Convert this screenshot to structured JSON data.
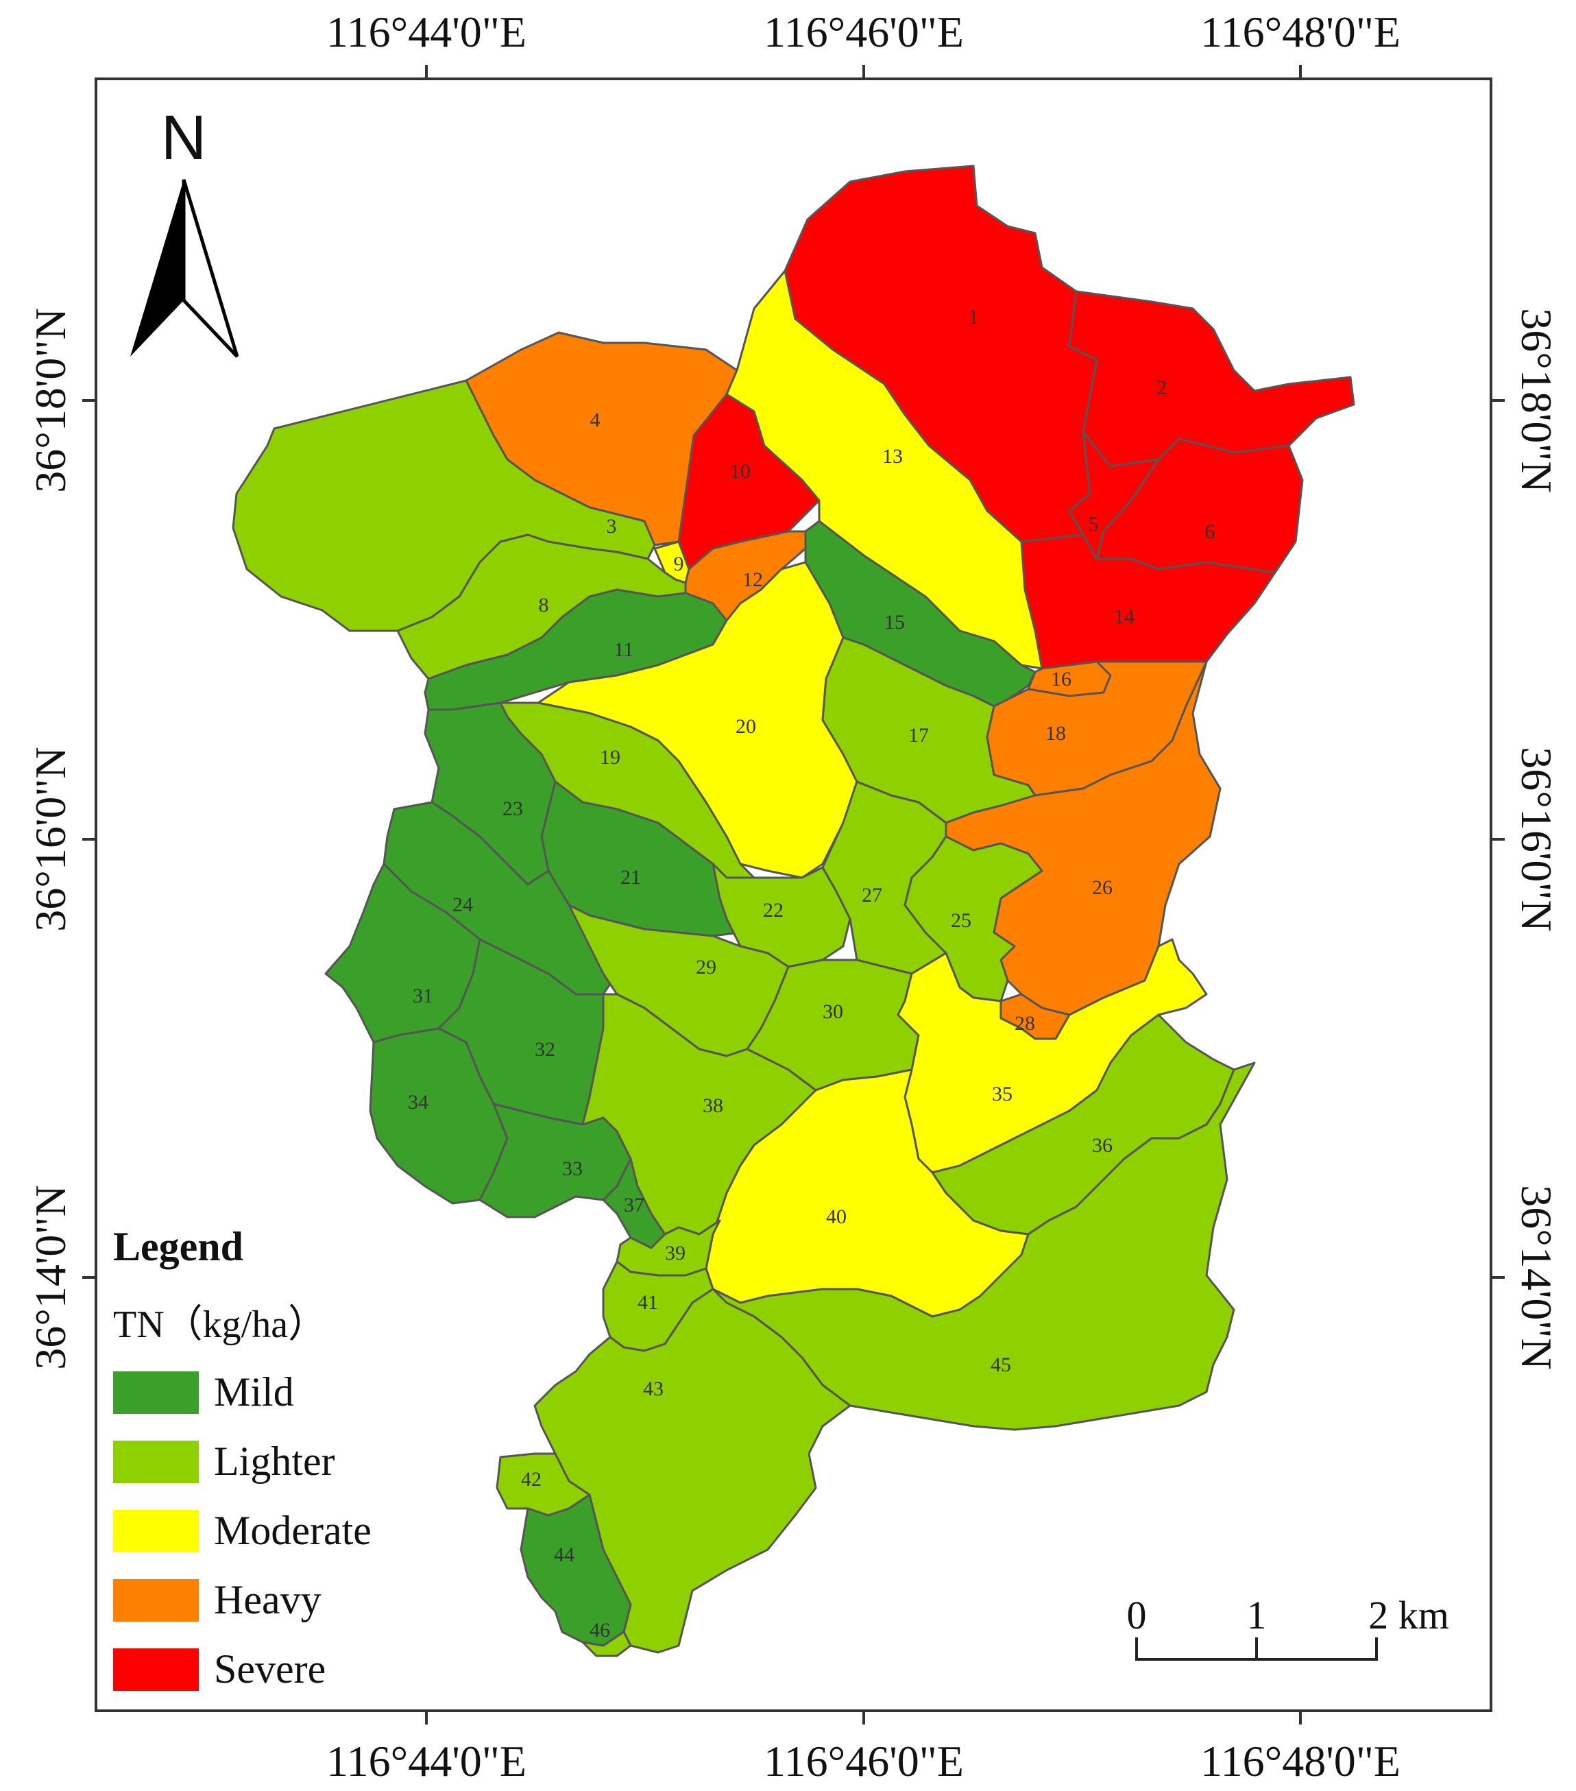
{
  "map": {
    "north_label": "N",
    "longitude_labels": [
      "116°44'0\"E",
      "116°46'0\"E",
      "116°48'0\"E"
    ],
    "latitude_labels": [
      "36°18'0\"N",
      "36°16'0\"N",
      "36°14'0\"N"
    ],
    "legend": {
      "title": "Legend",
      "subtitle": "TN（kg/ha）",
      "classes": [
        {
          "key": "mild",
          "label": "Mild",
          "color": "#3aa02a"
        },
        {
          "key": "lighter",
          "label": "Lighter",
          "color": "#8fd000"
        },
        {
          "key": "moderate",
          "label": "Moderate",
          "color": "#ffff00"
        },
        {
          "key": "heavy",
          "label": "Heavy",
          "color": "#ff7f00"
        },
        {
          "key": "severe",
          "label": "Severe",
          "color": "#ff0000"
        }
      ]
    },
    "scale_bar": {
      "ticks": [
        "0",
        "1",
        "2 km"
      ]
    },
    "subbasins": [
      {
        "id": "1",
        "class": "severe"
      },
      {
        "id": "2",
        "class": "severe"
      },
      {
        "id": "3",
        "class": "lighter"
      },
      {
        "id": "4",
        "class": "heavy"
      },
      {
        "id": "5",
        "class": "severe"
      },
      {
        "id": "6",
        "class": "severe"
      },
      {
        "id": "8",
        "class": "lighter"
      },
      {
        "id": "9",
        "class": "moderate"
      },
      {
        "id": "10",
        "class": "severe"
      },
      {
        "id": "11",
        "class": "mild"
      },
      {
        "id": "12",
        "class": "heavy"
      },
      {
        "id": "13",
        "class": "moderate"
      },
      {
        "id": "14",
        "class": "severe"
      },
      {
        "id": "15",
        "class": "mild"
      },
      {
        "id": "16",
        "class": "heavy"
      },
      {
        "id": "17",
        "class": "lighter"
      },
      {
        "id": "18",
        "class": "heavy"
      },
      {
        "id": "19",
        "class": "lighter"
      },
      {
        "id": "20",
        "class": "moderate"
      },
      {
        "id": "21",
        "class": "mild"
      },
      {
        "id": "22",
        "class": "lighter"
      },
      {
        "id": "23",
        "class": "mild"
      },
      {
        "id": "24",
        "class": "mild"
      },
      {
        "id": "25",
        "class": "lighter"
      },
      {
        "id": "26",
        "class": "heavy"
      },
      {
        "id": "27",
        "class": "lighter"
      },
      {
        "id": "28",
        "class": "heavy"
      },
      {
        "id": "29",
        "class": "lighter"
      },
      {
        "id": "30",
        "class": "lighter"
      },
      {
        "id": "31",
        "class": "mild"
      },
      {
        "id": "32",
        "class": "mild"
      },
      {
        "id": "33",
        "class": "mild"
      },
      {
        "id": "34",
        "class": "mild"
      },
      {
        "id": "35",
        "class": "moderate"
      },
      {
        "id": "36",
        "class": "lighter"
      },
      {
        "id": "37",
        "class": "mild"
      },
      {
        "id": "38",
        "class": "lighter"
      },
      {
        "id": "39",
        "class": "lighter"
      },
      {
        "id": "40",
        "class": "moderate"
      },
      {
        "id": "41",
        "class": "lighter"
      },
      {
        "id": "42",
        "class": "lighter"
      },
      {
        "id": "43",
        "class": "lighter"
      },
      {
        "id": "44",
        "class": "mild"
      },
      {
        "id": "45",
        "class": "lighter"
      },
      {
        "id": "46",
        "class": "lighter"
      }
    ]
  }
}
